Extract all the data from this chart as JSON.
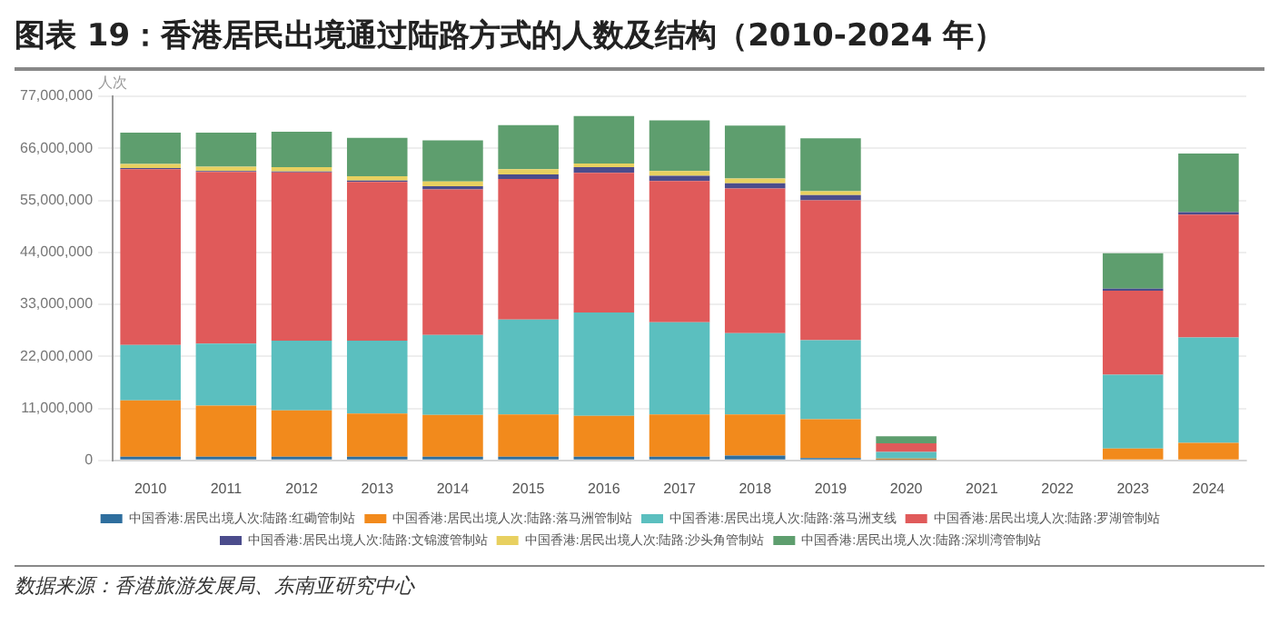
{
  "chart_data": {
    "type": "bar",
    "stacked": true,
    "title": "图表 19：香港居民出境通过陆路方式的人数及结构（2010-2024 年）",
    "ylabel": "人次",
    "categories": [
      "2010",
      "2011",
      "2012",
      "2013",
      "2014",
      "2015",
      "2016",
      "2017",
      "2018",
      "2019",
      "2020",
      "2021",
      "2022",
      "2023",
      "2024"
    ],
    "series": [
      {
        "name": "中国香港:居民出境人次:陆路:红磡管制站",
        "color": "#2e6e9e",
        "values": [
          800000,
          800000,
          800000,
          800000,
          800000,
          800000,
          800000,
          800000,
          1000000,
          500000,
          100000,
          0,
          0,
          0,
          0
        ]
      },
      {
        "name": "中国香港:居民出境人次:陆路:落马洲管制站",
        "color": "#f28a1c",
        "values": [
          11900000,
          10800000,
          9800000,
          9100000,
          8800000,
          8900000,
          8600000,
          8900000,
          8700000,
          8200000,
          300000,
          0,
          0,
          2500000,
          3700000
        ]
      },
      {
        "name": "中国香港:居民出境人次:陆路:落马洲支线",
        "color": "#5bbfbf",
        "values": [
          11700000,
          13100000,
          14700000,
          15400000,
          16900000,
          20100000,
          21900000,
          19500000,
          17200000,
          16700000,
          1400000,
          200000,
          200000,
          15600000,
          22300000
        ]
      },
      {
        "name": "中国香港:居民出境人次:陆路:罗湖管制站",
        "color": "#e05a5a",
        "values": [
          37200000,
          36300000,
          35600000,
          33600000,
          30800000,
          29700000,
          29500000,
          29900000,
          30600000,
          29600000,
          1800000,
          0,
          0,
          17800000,
          26000000
        ]
      },
      {
        "name": "中国香港:居民出境人次:陆路:文锦渡管制站",
        "color": "#4b4c8c",
        "values": [
          200000,
          200000,
          200000,
          300000,
          700000,
          1000000,
          1200000,
          1100000,
          1100000,
          1100000,
          0,
          0,
          0,
          400000,
          500000
        ]
      },
      {
        "name": "中国香港:居民出境人次:陆路:沙头角管制站",
        "color": "#e8d060",
        "values": [
          900000,
          900000,
          900000,
          900000,
          1000000,
          1100000,
          800000,
          1000000,
          1000000,
          800000,
          0,
          0,
          0,
          0,
          0
        ]
      },
      {
        "name": "中国香港:居民出境人次:陆路:深圳湾管制站",
        "color": "#5e9e6e",
        "values": [
          6600000,
          7200000,
          7500000,
          8100000,
          8700000,
          9300000,
          10000000,
          10700000,
          11200000,
          11200000,
          1500000,
          0,
          0,
          7500000,
          12400000
        ]
      }
    ],
    "ylim": [
      0,
      77000000
    ],
    "yticks": [
      {
        "value": 0,
        "label": "0"
      },
      {
        "value": 11000000,
        "label": "11,000,000"
      },
      {
        "value": 22000000,
        "label": "22,000,000"
      },
      {
        "value": 33000000,
        "label": "33,000,000"
      },
      {
        "value": 44000000,
        "label": "44,000,000"
      },
      {
        "value": 55000000,
        "label": "55,000,000"
      },
      {
        "value": 66000000,
        "label": "66,000,000"
      },
      {
        "value": 77000000,
        "label": "77,000,000"
      }
    ],
    "grid": "y",
    "legend": "bottom",
    "annotations": [
      "数据来源：香港旅游发展局、东南亚研究中心"
    ]
  }
}
